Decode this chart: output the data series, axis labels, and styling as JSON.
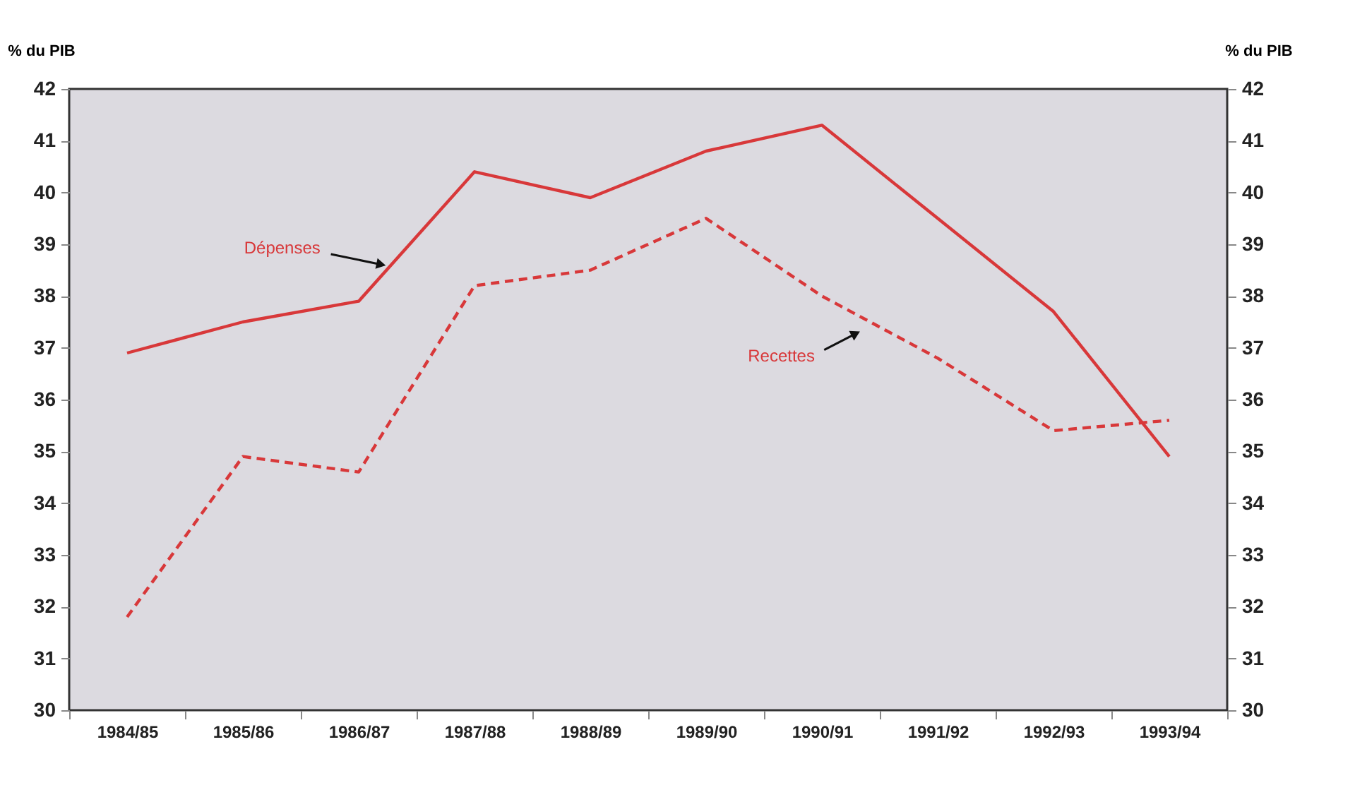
{
  "chart_data": {
    "type": "line",
    "ylabel": "% du PIB",
    "y2label": "% du PIB",
    "categories": [
      "1984/85",
      "1985/86",
      "1986/87",
      "1987/88",
      "1988/89",
      "1989/90",
      "1990/91",
      "1991/92",
      "1992/93",
      "1993/94"
    ],
    "series": [
      {
        "name": "Dépenses",
        "color": "#d8383a",
        "line_style": "solid",
        "values": [
          36.9,
          37.5,
          37.9,
          40.4,
          39.9,
          40.8,
          41.3,
          39.5,
          37.7,
          34.9
        ]
      },
      {
        "name": "Recettes",
        "color": "#d8383a",
        "line_style": "dashed",
        "values": [
          31.8,
          34.9,
          34.6,
          38.2,
          38.5,
          39.5,
          38.0,
          36.8,
          35.4,
          35.6
        ]
      }
    ],
    "ylim": [
      30,
      42
    ],
    "yticks": [
      30,
      31,
      32,
      33,
      34,
      35,
      36,
      37,
      38,
      39,
      40,
      41,
      42
    ],
    "y2lim": [
      30,
      42
    ],
    "y2ticks": [
      30,
      31,
      32,
      33,
      34,
      35,
      36,
      37,
      38,
      39,
      40,
      41,
      42
    ],
    "grid": false,
    "marker": "none"
  }
}
